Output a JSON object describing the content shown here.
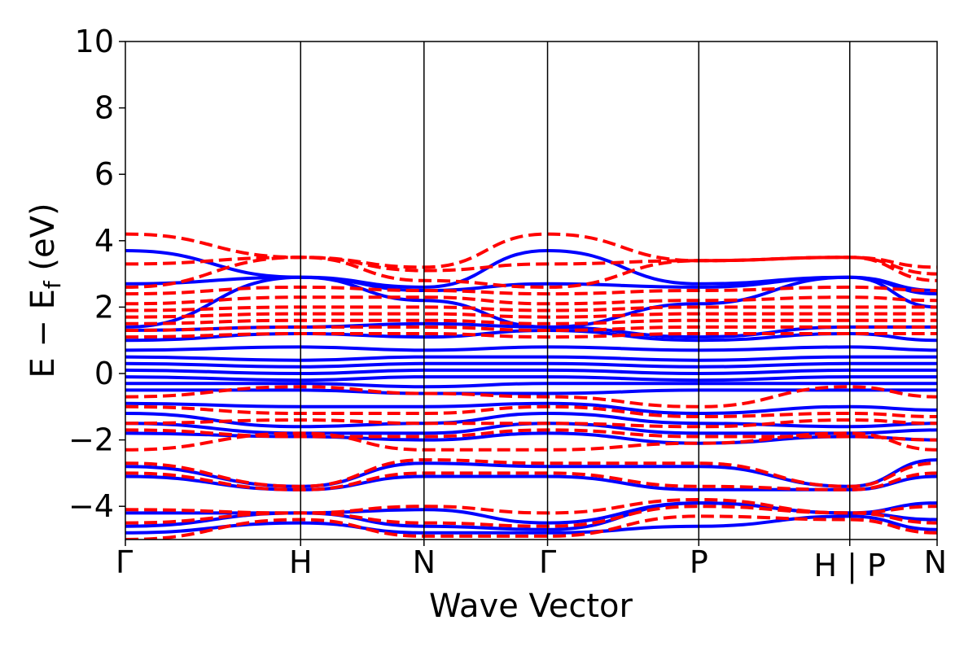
{
  "chart_data": {
    "type": "line",
    "title": "",
    "xlabel": "Wave Vector",
    "ylabel_main": "E − E",
    "ylabel_sub": "f",
    "ylabel_unit": " (eV)",
    "ylim": [
      -5,
      10
    ],
    "yticks": [
      -4,
      -2,
      0,
      2,
      4,
      6,
      8,
      10
    ],
    "ytick_labels": [
      "−4",
      "−2",
      "0",
      "2",
      "4",
      "6",
      "8",
      "10"
    ],
    "xlim": [
      0,
      1
    ],
    "kpoints": [
      {
        "label": "Γ",
        "x": 0.0
      },
      {
        "label": "H",
        "x": 0.2159
      },
      {
        "label": "N",
        "x": 0.3679
      },
      {
        "label": "Γ",
        "x": 0.5201
      },
      {
        "label": "P",
        "x": 0.7064
      },
      {
        "label": "H | P",
        "x": 0.8924
      },
      {
        "label": "N",
        "x": 1.0
      }
    ],
    "grid": false,
    "colors": {
      "solid": "#0000ff",
      "dashed": "#ff0000"
    },
    "series": [
      {
        "style": "solid",
        "x": [
          0,
          0.216,
          0.368,
          0.52,
          0.706,
          0.892,
          1.0
        ],
        "y": [
          3.7,
          2.9,
          2.6,
          3.7,
          2.7,
          2.9,
          2.5
        ]
      },
      {
        "style": "solid",
        "x": [
          0,
          0.216,
          0.368,
          0.52,
          0.706,
          0.892,
          1.0
        ],
        "y": [
          2.7,
          2.9,
          2.5,
          2.7,
          2.6,
          2.9,
          2.4
        ]
      },
      {
        "style": "solid",
        "x": [
          0,
          0.216,
          0.368,
          0.52,
          0.706,
          0.892,
          1.0
        ],
        "y": [
          1.4,
          2.9,
          2.2,
          1.4,
          2.1,
          2.9,
          2.0
        ]
      },
      {
        "style": "solid",
        "x": [
          0,
          0.216,
          0.368,
          0.52,
          0.706,
          0.892,
          1.0
        ],
        "y": [
          1.3,
          1.4,
          1.5,
          1.4,
          1.1,
          1.4,
          1.4
        ]
      },
      {
        "style": "solid",
        "x": [
          0,
          0.216,
          0.368,
          0.52,
          0.706,
          0.892,
          1.0
        ],
        "y": [
          1.0,
          1.2,
          1.1,
          1.3,
          1.0,
          1.2,
          1.0
        ]
      },
      {
        "style": "solid",
        "x": [
          0,
          0.216,
          0.368,
          0.52,
          0.706,
          0.892,
          1.0
        ],
        "y": [
          0.7,
          0.8,
          0.7,
          0.8,
          0.7,
          0.8,
          0.7
        ]
      },
      {
        "style": "solid",
        "x": [
          0,
          0.216,
          0.368,
          0.52,
          0.706,
          0.892,
          1.0
        ],
        "y": [
          0.5,
          0.4,
          0.5,
          0.5,
          0.4,
          0.5,
          0.5
        ]
      },
      {
        "style": "solid",
        "x": [
          0,
          0.216,
          0.368,
          0.52,
          0.706,
          0.892,
          1.0
        ],
        "y": [
          0.3,
          0.2,
          0.3,
          0.3,
          0.2,
          0.3,
          0.3
        ]
      },
      {
        "style": "solid",
        "x": [
          0,
          0.216,
          0.368,
          0.52,
          0.706,
          0.892,
          1.0
        ],
        "y": [
          0.1,
          0.0,
          0.1,
          0.1,
          0.0,
          0.1,
          0.1
        ]
      },
      {
        "style": "solid",
        "x": [
          0,
          0.216,
          0.368,
          0.52,
          0.706,
          0.892,
          1.0
        ],
        "y": [
          -0.1,
          -0.2,
          -0.1,
          -0.1,
          -0.2,
          -0.1,
          -0.1
        ]
      },
      {
        "style": "solid",
        "x": [
          0,
          0.216,
          0.368,
          0.52,
          0.706,
          0.892,
          1.0
        ],
        "y": [
          -0.3,
          -0.3,
          -0.4,
          -0.3,
          -0.3,
          -0.3,
          -0.3
        ]
      },
      {
        "style": "solid",
        "x": [
          0,
          0.216,
          0.368,
          0.52,
          0.706,
          0.892,
          1.0
        ],
        "y": [
          -0.5,
          -0.5,
          -0.6,
          -0.6,
          -0.5,
          -0.5,
          -0.5
        ]
      },
      {
        "style": "solid",
        "x": [
          0,
          0.216,
          0.368,
          0.52,
          0.706,
          0.892,
          1.0
        ],
        "y": [
          -0.9,
          -1.0,
          -1.0,
          -0.9,
          -1.2,
          -1.0,
          -1.1
        ]
      },
      {
        "style": "solid",
        "x": [
          0,
          0.216,
          0.368,
          0.52,
          0.706,
          0.892,
          1.0
        ],
        "y": [
          -1.2,
          -1.6,
          -1.5,
          -1.2,
          -1.5,
          -1.6,
          -1.5
        ]
      },
      {
        "style": "solid",
        "x": [
          0,
          0.216,
          0.368,
          0.52,
          0.706,
          0.892,
          1.0
        ],
        "y": [
          -1.5,
          -1.8,
          -1.8,
          -1.5,
          -1.8,
          -1.8,
          -1.7
        ]
      },
      {
        "style": "solid",
        "x": [
          0,
          0.216,
          0.368,
          0.52,
          0.706,
          0.892,
          1.0
        ],
        "y": [
          -1.8,
          -1.9,
          -2.0,
          -1.8,
          -2.1,
          -1.9,
          -2.0
        ]
      },
      {
        "style": "solid",
        "x": [
          0,
          0.216,
          0.368,
          0.52,
          0.706,
          0.892,
          1.0
        ],
        "y": [
          -2.8,
          -3.4,
          -2.7,
          -2.8,
          -2.8,
          -3.4,
          -2.6
        ]
      },
      {
        "style": "solid",
        "x": [
          0,
          0.216,
          0.368,
          0.52,
          0.706,
          0.892,
          1.0
        ],
        "y": [
          -3.1,
          -3.5,
          -3.1,
          -3.1,
          -3.5,
          -3.5,
          -3.1
        ]
      },
      {
        "style": "solid",
        "x": [
          0,
          0.216,
          0.368,
          0.52,
          0.706,
          0.892,
          1.0
        ],
        "y": [
          -4.2,
          -4.2,
          -4.1,
          -4.5,
          -3.9,
          -4.2,
          -3.9
        ]
      },
      {
        "style": "solid",
        "x": [
          0,
          0.216,
          0.368,
          0.52,
          0.706,
          0.892,
          1.0
        ],
        "y": [
          -4.6,
          -4.2,
          -4.6,
          -4.7,
          -3.9,
          -4.2,
          -4.4
        ]
      },
      {
        "style": "solid",
        "x": [
          0,
          0.216,
          0.368,
          0.52,
          0.706,
          0.892,
          1.0
        ],
        "y": [
          -4.8,
          -4.5,
          -4.8,
          -4.8,
          -4.6,
          -4.3,
          -4.7
        ]
      },
      {
        "style": "dashed",
        "x": [
          0,
          0.216,
          0.368,
          0.52,
          0.706,
          0.892,
          1.0
        ],
        "y": [
          4.2,
          3.5,
          3.2,
          4.2,
          3.4,
          3.5,
          3.2
        ]
      },
      {
        "style": "dashed",
        "x": [
          0,
          0.216,
          0.368,
          0.52,
          0.706,
          0.892,
          1.0
        ],
        "y": [
          3.3,
          3.5,
          3.1,
          3.3,
          3.4,
          3.5,
          3.0
        ]
      },
      {
        "style": "dashed",
        "x": [
          0,
          0.216,
          0.368,
          0.52,
          0.706,
          0.892,
          1.0
        ],
        "y": [
          2.6,
          3.5,
          2.8,
          2.6,
          3.4,
          3.5,
          2.8
        ]
      },
      {
        "style": "dashed",
        "x": [
          0,
          0.216,
          0.368,
          0.52,
          0.706,
          0.892,
          1.0
        ],
        "y": [
          2.4,
          2.6,
          2.5,
          2.4,
          2.5,
          2.6,
          2.5
        ]
      },
      {
        "style": "dashed",
        "x": [
          0,
          0.216,
          0.368,
          0.52,
          0.706,
          0.892,
          1.0
        ],
        "y": [
          2.1,
          2.3,
          2.3,
          2.1,
          2.2,
          2.3,
          2.2
        ]
      },
      {
        "style": "dashed",
        "x": [
          0,
          0.216,
          0.368,
          0.52,
          0.706,
          0.892,
          1.0
        ],
        "y": [
          1.9,
          2.0,
          2.0,
          1.9,
          2.0,
          2.0,
          2.0
        ]
      },
      {
        "style": "dashed",
        "x": [
          0,
          0.216,
          0.368,
          0.52,
          0.706,
          0.892,
          1.0
        ],
        "y": [
          1.7,
          1.8,
          1.8,
          1.7,
          1.8,
          1.8,
          1.8
        ]
      },
      {
        "style": "dashed",
        "x": [
          0,
          0.216,
          0.368,
          0.52,
          0.706,
          0.892,
          1.0
        ],
        "y": [
          1.5,
          1.6,
          1.6,
          1.5,
          1.6,
          1.6,
          1.6
        ]
      },
      {
        "style": "dashed",
        "x": [
          0,
          0.216,
          0.368,
          0.52,
          0.706,
          0.892,
          1.0
        ],
        "y": [
          1.3,
          1.4,
          1.4,
          1.3,
          1.4,
          1.4,
          1.4
        ]
      },
      {
        "style": "dashed",
        "x": [
          0,
          0.216,
          0.368,
          0.52,
          0.706,
          0.892,
          1.0
        ],
        "y": [
          1.1,
          1.2,
          1.2,
          1.1,
          1.2,
          1.2,
          1.2
        ]
      },
      {
        "style": "dashed",
        "x": [
          0,
          0.216,
          0.368,
          0.52,
          0.706,
          0.892,
          1.0
        ],
        "y": [
          -0.7,
          -0.4,
          -0.6,
          -0.7,
          -1.0,
          -0.4,
          -0.7
        ]
      },
      {
        "style": "dashed",
        "x": [
          0,
          0.216,
          0.368,
          0.52,
          0.706,
          0.892,
          1.0
        ],
        "y": [
          -1.0,
          -1.2,
          -1.2,
          -1.0,
          -1.3,
          -1.2,
          -1.3
        ]
      },
      {
        "style": "dashed",
        "x": [
          0,
          0.216,
          0.368,
          0.52,
          0.706,
          0.892,
          1.0
        ],
        "y": [
          -1.5,
          -1.4,
          -1.5,
          -1.5,
          -1.6,
          -1.4,
          -1.5
        ]
      },
      {
        "style": "dashed",
        "x": [
          0,
          0.216,
          0.368,
          0.52,
          0.706,
          0.892,
          1.0
        ],
        "y": [
          -1.7,
          -1.9,
          -1.9,
          -1.7,
          -1.9,
          -1.9,
          -2.0
        ]
      },
      {
        "style": "dashed",
        "x": [
          0,
          0.216,
          0.368,
          0.52,
          0.706,
          0.892,
          1.0
        ],
        "y": [
          -2.3,
          -1.8,
          -2.3,
          -2.3,
          -2.1,
          -1.8,
          -2.3
        ]
      },
      {
        "style": "dashed",
        "x": [
          0,
          0.216,
          0.368,
          0.52,
          0.706,
          0.892,
          1.0
        ],
        "y": [
          -2.7,
          -3.4,
          -2.6,
          -2.7,
          -2.7,
          -3.4,
          -2.7
        ]
      },
      {
        "style": "dashed",
        "x": [
          0,
          0.216,
          0.368,
          0.52,
          0.706,
          0.892,
          1.0
        ],
        "y": [
          -3.0,
          -3.5,
          -3.0,
          -3.0,
          -3.4,
          -3.5,
          -3.0
        ]
      },
      {
        "style": "dashed",
        "x": [
          0,
          0.216,
          0.368,
          0.52,
          0.706,
          0.892,
          1.0
        ],
        "y": [
          -4.1,
          -4.2,
          -4.0,
          -4.2,
          -3.8,
          -4.2,
          -4.0
        ]
      },
      {
        "style": "dashed",
        "x": [
          0,
          0.216,
          0.368,
          0.52,
          0.706,
          0.892,
          1.0
        ],
        "y": [
          -4.5,
          -4.2,
          -4.5,
          -4.6,
          -4.0,
          -4.2,
          -4.5
        ]
      },
      {
        "style": "dashed",
        "x": [
          0,
          0.216,
          0.368,
          0.52,
          0.706,
          0.892,
          1.0
        ],
        "y": [
          -5.0,
          -4.4,
          -4.9,
          -4.9,
          -4.3,
          -4.4,
          -4.8
        ]
      }
    ]
  }
}
